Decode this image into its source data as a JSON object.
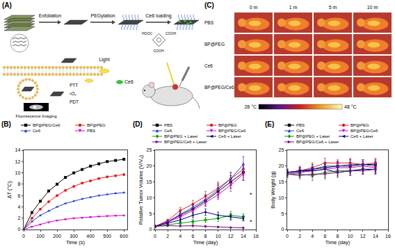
{
  "panels": {
    "A": {
      "label": "(A)",
      "steps": [
        "Exfoliation",
        "PEGylation",
        "Ce6 loading"
      ],
      "structure_labels": [
        "HOOC",
        "COOH",
        "COOH"
      ],
      "texts": {
        "light": "Light",
        "drug": "Ce6",
        "ptt": "PTT",
        "singlet_oxygen": "¹O₂",
        "pdt": "PDT",
        "imaging": "Fluorescence Imaging"
      }
    },
    "C": {
      "label": "(C)",
      "columns": [
        "0 m",
        "1 m",
        "5 m",
        "10 m"
      ],
      "rows": [
        "PBS",
        "BP@PEG",
        "Ce6",
        "BP@PEG/Ce6"
      ],
      "colorbar": {
        "range": [
          28,
          48
        ],
        "ticks": [
          {
            "value": 28,
            "label": "28 °C"
          },
          {
            "value": 48,
            "label": "48 °C"
          }
        ]
      }
    }
  },
  "chart_data": [
    {
      "type": "line",
      "title": "(B)",
      "xlabel": "Time (s)",
      "ylabel": "ΔT (°C)",
      "x": [
        0,
        50,
        100,
        150,
        200,
        250,
        300,
        350,
        400,
        450,
        500,
        550,
        600
      ],
      "xlim": [
        0,
        620
      ],
      "xticks": [
        0,
        100,
        200,
        300,
        400,
        500,
        600
      ],
      "ylim": [
        0,
        14
      ],
      "yticks": [
        0,
        2,
        4,
        6,
        8,
        10,
        12,
        14
      ],
      "grid": false,
      "legend": "top",
      "series": [
        {
          "name": "BP@PEG/Ce6",
          "color": "#000000",
          "marker": "square",
          "line_style": "solid",
          "values": [
            0,
            3,
            5,
            6.8,
            8,
            9.2,
            10,
            10.6,
            11.2,
            11.6,
            12,
            12.2,
            12.4
          ]
        },
        {
          "name": "BP@PEG",
          "color": "#e41a1c",
          "marker": "circle",
          "line_style": "solid",
          "values": [
            0,
            2,
            3.6,
            4.9,
            6,
            6.9,
            7.6,
            8.2,
            8.6,
            9,
            9.3,
            9.5,
            9.7
          ]
        },
        {
          "name": "Ce6",
          "color": "#1f3fd0",
          "marker": "triangle-up",
          "line_style": "solid",
          "values": [
            0,
            1.4,
            2.5,
            3.3,
            4,
            4.6,
            5,
            5.4,
            5.7,
            6,
            6.2,
            6.4,
            6.5
          ]
        },
        {
          "name": "PBS",
          "color": "#d400d4",
          "marker": "triangle-down",
          "line_style": "solid",
          "values": [
            0,
            0.5,
            0.9,
            1.3,
            1.6,
            1.8,
            2,
            2.1,
            2.2,
            2.3,
            2.4,
            2.45,
            2.5
          ]
        }
      ]
    },
    {
      "type": "line",
      "title": "(D)",
      "xlabel": "Time (day)",
      "ylabel": "Relative Tumor Volume (V/V₀)",
      "x": [
        0,
        2,
        4,
        6,
        8,
        10,
        12,
        14
      ],
      "xlim": [
        0,
        16
      ],
      "xticks": [
        0,
        2,
        4,
        6,
        8,
        10,
        12,
        14,
        16
      ],
      "ylim": [
        0,
        25
      ],
      "yticks": [
        0,
        5,
        10,
        15,
        20,
        25
      ],
      "grid": false,
      "legend": "top",
      "annotations": [
        {
          "text": "*",
          "x": 15.2,
          "y": 11
        },
        {
          "text": "*",
          "x": 15.2,
          "y": 2.5
        }
      ],
      "series": [
        {
          "name": "PBS",
          "color": "#000000",
          "marker": "square",
          "line_style": "solid",
          "values": [
            1,
            2.5,
            4.5,
            6.5,
            9,
            12,
            15,
            18
          ],
          "errors": [
            0,
            0.5,
            0.8,
            1,
            1.5,
            2,
            2,
            2.5
          ]
        },
        {
          "name": "BP@PEG",
          "color": "#e41a1c",
          "marker": "circle",
          "line_style": "solid",
          "values": [
            1,
            2.8,
            6,
            8,
            10.5,
            13,
            16,
            19
          ],
          "errors": [
            0,
            0.5,
            1,
            1.2,
            1.5,
            2,
            2,
            2
          ]
        },
        {
          "name": "Ce6",
          "color": "#1f3fd0",
          "marker": "triangle-up",
          "line_style": "solid",
          "values": [
            1,
            2.4,
            4.8,
            7,
            9.5,
            12.5,
            16,
            20.5
          ],
          "errors": [
            0,
            0.4,
            0.8,
            1,
            1.5,
            2,
            2,
            2.5
          ]
        },
        {
          "name": "BP@PEG/Ce6",
          "color": "#d400d4",
          "marker": "triangle-down",
          "line_style": "solid",
          "values": [
            1,
            2.3,
            4,
            6,
            8.5,
            11,
            14,
            17.5
          ],
          "errors": [
            0,
            0.4,
            0.7,
            1,
            1.2,
            1.5,
            2,
            2
          ]
        },
        {
          "name": "BP@PEG + Laser",
          "color": "#00a000",
          "marker": "diamond",
          "line_style": "solid",
          "values": [
            1,
            1.5,
            2,
            2.5,
            3,
            3.5,
            4.5,
            4
          ],
          "errors": [
            0,
            0.3,
            0.5,
            0.6,
            0.8,
            1,
            1.2,
            1
          ]
        },
        {
          "name": "Ce6 + Laser",
          "color": "#000080",
          "marker": "triangle-left",
          "line_style": "solid",
          "values": [
            1,
            2,
            3,
            4.5,
            5.5,
            4.5,
            4,
            3.5
          ],
          "errors": [
            0,
            0.4,
            0.6,
            0.8,
            1,
            1,
            1,
            0.8
          ]
        },
        {
          "name": "BP@PEG/Ce6 + Laser",
          "color": "#800080",
          "marker": "triangle-right",
          "line_style": "solid",
          "values": [
            1,
            1.2,
            1.1,
            1.2,
            1,
            0.8,
            0.6,
            0.5
          ],
          "errors": [
            0,
            0.2,
            0.2,
            0.3,
            0.3,
            0.2,
            0.2,
            0.2
          ]
        }
      ]
    },
    {
      "type": "line",
      "title": "(E)",
      "xlabel": "Time (day)",
      "ylabel": "Body Weight (g)",
      "x": [
        0,
        2,
        4,
        6,
        8,
        10,
        12,
        14
      ],
      "xlim": [
        0,
        16
      ],
      "xticks": [
        0,
        2,
        4,
        6,
        8,
        10,
        12,
        14,
        16
      ],
      "ylim": [
        0,
        25
      ],
      "yticks": [
        0,
        5,
        10,
        15,
        20,
        25
      ],
      "grid": false,
      "legend": "top",
      "series": [
        {
          "name": "PBS",
          "color": "#000000",
          "marker": "square",
          "line_style": "solid",
          "values": [
            18,
            18.5,
            19,
            19.5,
            20,
            20,
            20.5,
            20.5
          ],
          "errors": [
            1,
            1,
            1.5,
            1.5,
            1.5,
            2,
            1.5,
            1.5
          ]
        },
        {
          "name": "BP@PEG",
          "color": "#e41a1c",
          "marker": "circle",
          "line_style": "solid",
          "values": [
            18,
            18.5,
            19.5,
            21,
            21,
            21,
            20.5,
            21
          ],
          "errors": [
            1,
            1.5,
            1.5,
            1.5,
            1,
            1.5,
            1.5,
            1.5
          ]
        },
        {
          "name": "Ce6",
          "color": "#1f3fd0",
          "marker": "triangle-up",
          "line_style": "solid",
          "values": [
            18,
            18,
            19,
            20,
            20,
            20.5,
            20.5,
            20
          ],
          "errors": [
            1,
            1,
            1.5,
            1,
            1.5,
            1.5,
            1,
            1.5
          ]
        },
        {
          "name": "BP@PEG/Ce6",
          "color": "#d400d4",
          "marker": "triangle-down",
          "line_style": "solid",
          "values": [
            17.5,
            18,
            18.5,
            19,
            19.5,
            19.5,
            20,
            19.5
          ],
          "errors": [
            1,
            1.5,
            1,
            1.5,
            1.5,
            1,
            1.5,
            1.5
          ]
        },
        {
          "name": "BP@PEG + Laser",
          "color": "#00a000",
          "marker": "diamond",
          "line_style": "solid",
          "values": [
            17.5,
            17.5,
            17,
            18,
            18.5,
            18.5,
            19,
            19
          ],
          "errors": [
            1,
            1,
            1.5,
            1.5,
            1,
            1.5,
            1.5,
            1
          ]
        },
        {
          "name": "Ce6 + Laser",
          "color": "#000080",
          "marker": "triangle-left",
          "line_style": "solid",
          "values": [
            18,
            18.5,
            18.5,
            19,
            18,
            18.5,
            19,
            19
          ],
          "errors": [
            1,
            1,
            1,
            1.5,
            1.5,
            1,
            1.5,
            1.5
          ]
        },
        {
          "name": "BP@PEG/Ce6 + Laser",
          "color": "#800080",
          "marker": "triangle-right",
          "line_style": "solid",
          "values": [
            17.5,
            17,
            17.5,
            17.5,
            18,
            18.5,
            18.5,
            19
          ],
          "errors": [
            1,
            1,
            1,
            1.5,
            1,
            1.5,
            1,
            1.5
          ]
        }
      ]
    }
  ]
}
